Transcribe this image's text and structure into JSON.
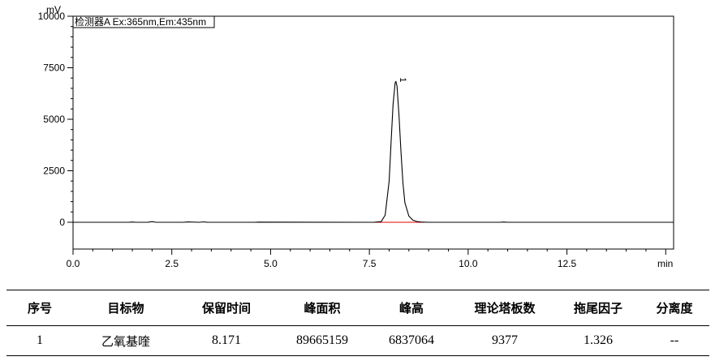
{
  "chart_data": {
    "type": "line",
    "title": "检测器A Ex:365nm,Em:435nm",
    "ylabel": "mV",
    "xlabel": "min",
    "xlim": [
      0,
      15.2
    ],
    "ylim": [
      -1300,
      10000
    ],
    "xticks": [
      0.0,
      2.5,
      5.0,
      7.5,
      10.0,
      12.5
    ],
    "xtick_labels": [
      "0.0",
      "2.5",
      "5.0",
      "7.5",
      "10.0",
      "12.5"
    ],
    "yticks": [
      0,
      2500,
      5000,
      7500,
      10000
    ],
    "ytick_labels": [
      "0",
      "2500",
      "5000",
      "7500",
      "10000"
    ],
    "series": [
      {
        "x": [
          0.0,
          1.4,
          1.5,
          1.6,
          1.9,
          2.0,
          2.1,
          2.8,
          2.9,
          3.2,
          3.3,
          3.4,
          4.6,
          4.7,
          7.6,
          7.8,
          7.9,
          8.0,
          8.05,
          8.1,
          8.15,
          8.171,
          8.2,
          8.25,
          8.3,
          8.35,
          8.4,
          8.5,
          8.6,
          8.7,
          8.8,
          9.0,
          9.2,
          10.8,
          10.9,
          11.0,
          15.2
        ],
        "y": [
          0,
          0,
          10,
          0,
          5,
          30,
          0,
          0,
          15,
          0,
          20,
          0,
          0,
          8,
          0,
          30,
          350,
          2000,
          3900,
          5700,
          6750,
          6837,
          6600,
          5200,
          3400,
          1900,
          950,
          300,
          100,
          40,
          10,
          0,
          0,
          0,
          10,
          0,
          0
        ],
        "color": "#000000"
      }
    ],
    "baseline": {
      "x": [
        7.6,
        8.9
      ],
      "y": [
        0,
        0
      ],
      "color": "#e00000"
    },
    "annotations": [
      {
        "text": "1",
        "x": 8.171,
        "y": 6837
      }
    ],
    "grid": false
  },
  "results_table": {
    "headers": [
      "序号",
      "目标物",
      "保留时间",
      "峰面积",
      "峰高",
      "理论塔板数",
      "拖尾因子",
      "分离度"
    ],
    "rows": [
      [
        "1",
        "乙氧基喹",
        "8.171",
        "89665159",
        "6837064",
        "9377",
        "1.326",
        "--"
      ]
    ]
  }
}
